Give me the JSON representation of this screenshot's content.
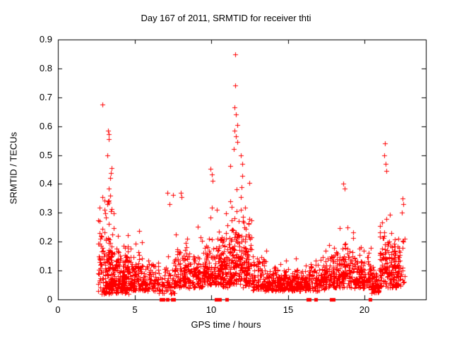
{
  "chart_data": {
    "type": "scatter",
    "title": "Day 167 of 2011, SRMTID for receiver thti",
    "xlabel": "GPS time / hours",
    "ylabel": "SRMTID / TECUs",
    "xlim": [
      0,
      24
    ],
    "ylim": [
      0,
      0.9
    ],
    "xticks": [
      {
        "v": 0,
        "label": "0"
      },
      {
        "v": 5,
        "label": "5"
      },
      {
        "v": 10,
        "label": "10"
      },
      {
        "v": 15,
        "label": "15"
      },
      {
        "v": 20,
        "label": "20"
      }
    ],
    "yticks": [
      {
        "v": 0.0,
        "label": "0"
      },
      {
        "v": 0.1,
        "label": "0.1"
      },
      {
        "v": 0.2,
        "label": "0.2"
      },
      {
        "v": 0.3,
        "label": "0.3"
      },
      {
        "v": 0.4,
        "label": "0.4"
      },
      {
        "v": 0.5,
        "label": "0.5"
      },
      {
        "v": 0.6,
        "label": "0.6"
      },
      {
        "v": 0.7,
        "label": "0.7"
      },
      {
        "v": 0.8,
        "label": "0.8"
      },
      {
        "v": 0.9,
        "label": "0.9"
      }
    ],
    "grid": false,
    "legend": "none",
    "marker": "plus",
    "marker_color": "#ff0000",
    "axis_color": "#000000",
    "background": "#ffffff",
    "clusters": [
      {
        "x0": 2.62,
        "x1": 3.05,
        "n": 55,
        "ymin": 0.02,
        "spread": 0.13,
        "ymax": 0.46
      },
      {
        "x0": 3.05,
        "x1": 3.45,
        "n": 85,
        "ymin": 0.02,
        "spread": 0.14,
        "ymax": 0.52
      },
      {
        "x0": 3.45,
        "x1": 3.95,
        "n": 95,
        "ymin": 0.02,
        "spread": 0.1,
        "ymax": 0.42
      },
      {
        "x0": 3.95,
        "x1": 4.6,
        "n": 110,
        "ymin": 0.02,
        "spread": 0.08,
        "ymax": 0.32
      },
      {
        "x0": 4.6,
        "x1": 5.6,
        "n": 115,
        "ymin": 0.03,
        "spread": 0.065,
        "ymax": 0.28
      },
      {
        "x0": 5.6,
        "x1": 6.6,
        "n": 85,
        "ymin": 0.03,
        "spread": 0.05,
        "ymax": 0.22
      },
      {
        "x0": 6.6,
        "x1": 7.6,
        "n": 65,
        "ymin": 0.02,
        "spread": 0.045,
        "ymax": 0.16
      },
      {
        "x0": 7.6,
        "x1": 8.6,
        "n": 115,
        "ymin": 0.04,
        "spread": 0.075,
        "ymax": 0.33
      },
      {
        "x0": 8.6,
        "x1": 9.6,
        "n": 105,
        "ymin": 0.04,
        "spread": 0.065,
        "ymax": 0.27
      },
      {
        "x0": 9.6,
        "x1": 10.7,
        "n": 135,
        "ymin": 0.05,
        "spread": 0.085,
        "ymax": 0.42
      },
      {
        "x0": 10.7,
        "x1": 11.2,
        "n": 80,
        "ymin": 0.04,
        "spread": 0.09,
        "ymax": 0.4
      },
      {
        "x0": 11.2,
        "x1": 12.05,
        "n": 135,
        "ymin": 0.05,
        "spread": 0.15,
        "ymax": 0.62
      },
      {
        "x0": 12.05,
        "x1": 12.65,
        "n": 85,
        "ymin": 0.04,
        "spread": 0.11,
        "ymax": 0.46
      },
      {
        "x0": 12.65,
        "x1": 13.6,
        "n": 90,
        "ymin": 0.03,
        "spread": 0.06,
        "ymax": 0.28
      },
      {
        "x0": 13.6,
        "x1": 15.0,
        "n": 155,
        "ymin": 0.03,
        "spread": 0.035,
        "ymax": 0.14
      },
      {
        "x0": 15.0,
        "x1": 16.4,
        "n": 155,
        "ymin": 0.03,
        "spread": 0.035,
        "ymax": 0.16
      },
      {
        "x0": 16.4,
        "x1": 17.4,
        "n": 90,
        "ymin": 0.03,
        "spread": 0.05,
        "ymax": 0.27
      },
      {
        "x0": 17.4,
        "x1": 18.4,
        "n": 110,
        "ymin": 0.04,
        "spread": 0.07,
        "ymax": 0.32
      },
      {
        "x0": 18.4,
        "x1": 19.4,
        "n": 110,
        "ymin": 0.04,
        "spread": 0.08,
        "ymax": 0.38
      },
      {
        "x0": 19.4,
        "x1": 20.4,
        "n": 100,
        "ymin": 0.04,
        "spread": 0.06,
        "ymax": 0.26
      },
      {
        "x0": 20.4,
        "x1": 21.0,
        "n": 70,
        "ymin": 0.02,
        "spread": 0.05,
        "ymax": 0.22
      },
      {
        "x0": 21.0,
        "x1": 21.8,
        "n": 110,
        "ymin": 0.04,
        "spread": 0.1,
        "ymax": 0.46
      },
      {
        "x0": 21.8,
        "x1": 22.35,
        "n": 80,
        "ymin": 0.04,
        "spread": 0.08,
        "ymax": 0.36
      },
      {
        "x0": 22.35,
        "x1": 22.65,
        "n": 12,
        "ymin": 0.05,
        "spread": 0.1,
        "ymax": 0.3
      }
    ],
    "peaks": [
      [
        2.88,
        0.675
      ],
      [
        3.27,
        0.585
      ],
      [
        3.3,
        0.572
      ],
      [
        3.33,
        0.556
      ],
      [
        3.24,
        0.5
      ],
      [
        3.5,
        0.455
      ],
      [
        3.46,
        0.438
      ],
      [
        3.42,
        0.42
      ],
      [
        7.15,
        0.37
      ],
      [
        7.5,
        0.362
      ],
      [
        7.3,
        0.33
      ],
      [
        8.0,
        0.37
      ],
      [
        8.06,
        0.355
      ],
      [
        9.95,
        0.452
      ],
      [
        10.02,
        0.432
      ],
      [
        10.1,
        0.41
      ],
      [
        11.58,
        0.848
      ],
      [
        11.55,
        0.74
      ],
      [
        11.5,
        0.665
      ],
      [
        11.63,
        0.64
      ],
      [
        11.68,
        0.605
      ],
      [
        11.52,
        0.585
      ],
      [
        11.6,
        0.565
      ],
      [
        11.72,
        0.545
      ],
      [
        11.47,
        0.52
      ],
      [
        11.95,
        0.5
      ],
      [
        12.0,
        0.47
      ],
      [
        18.62,
        0.4
      ],
      [
        18.68,
        0.385
      ],
      [
        21.33,
        0.54
      ],
      [
        21.28,
        0.5
      ],
      [
        21.38,
        0.47
      ],
      [
        21.43,
        0.445
      ],
      [
        22.48,
        0.35
      ],
      [
        22.54,
        0.33
      ],
      [
        22.44,
        0.302
      ]
    ],
    "zero_marks": [
      6.72,
      6.8,
      6.88,
      7.14,
      7.44,
      7.54,
      10.3,
      10.4,
      10.56,
      11.0,
      16.3,
      16.4,
      16.8,
      17.85,
      17.95,
      20.35
    ]
  }
}
